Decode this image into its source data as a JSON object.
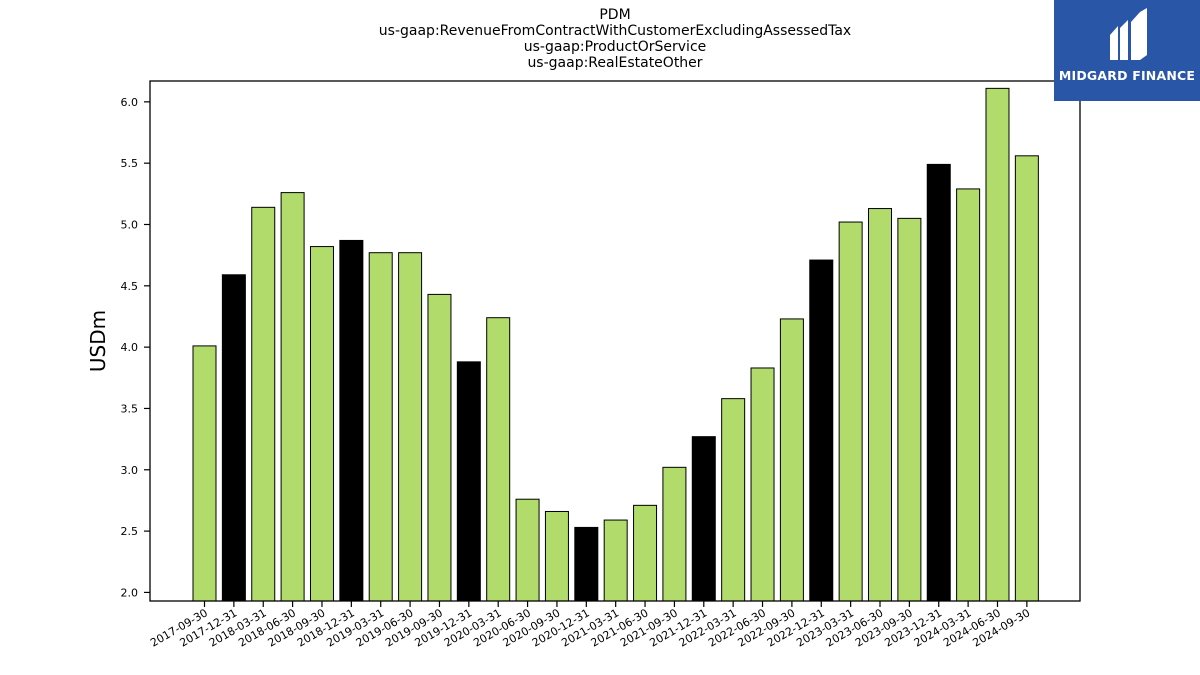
{
  "title_lines": [
    "PDM",
    "us-gaap:RevenueFromContractWithCustomerExcludingAssessedTax",
    "us-gaap:ProductOrService",
    "us-gaap:RealEstateOther"
  ],
  "logo": {
    "text": "MIDGARD FINANCE",
    "bg": "#2a56a8"
  },
  "chart_data": {
    "type": "bar",
    "ylabel": "USDm",
    "ylim": [
      1.93,
      6.17
    ],
    "yticks": [
      2.0,
      2.5,
      3.0,
      3.5,
      4.0,
      4.5,
      5.0,
      5.5,
      6.0
    ],
    "categories": [
      "2017-09-30",
      "2017-12-31",
      "2018-03-31",
      "2018-06-30",
      "2018-09-30",
      "2018-12-31",
      "2019-03-31",
      "2019-06-30",
      "2019-09-30",
      "2019-12-31",
      "2020-03-31",
      "2020-06-30",
      "2020-09-30",
      "2020-12-31",
      "2021-03-31",
      "2021-06-30",
      "2021-09-30",
      "2021-12-31",
      "2022-03-31",
      "2022-06-30",
      "2022-09-30",
      "2022-12-31",
      "2023-03-31",
      "2023-06-30",
      "2023-09-30",
      "2023-12-31",
      "2024-03-31",
      "2024-06-30",
      "2024-09-30"
    ],
    "values": [
      4.01,
      4.59,
      5.14,
      5.26,
      4.82,
      4.87,
      4.77,
      4.77,
      4.43,
      3.88,
      4.24,
      2.76,
      2.66,
      2.53,
      2.59,
      2.71,
      3.02,
      3.27,
      3.58,
      3.83,
      4.23,
      4.71,
      5.02,
      5.13,
      5.05,
      5.49,
      5.29,
      6.11,
      5.56
    ],
    "colors": {
      "quarter": "#b1dc6b",
      "year_end": "#000000"
    },
    "bar_colors": [
      "quarter",
      "year_end",
      "quarter",
      "quarter",
      "quarter",
      "year_end",
      "quarter",
      "quarter",
      "quarter",
      "year_end",
      "quarter",
      "quarter",
      "quarter",
      "year_end",
      "quarter",
      "quarter",
      "quarter",
      "year_end",
      "quarter",
      "quarter",
      "quarter",
      "year_end",
      "quarter",
      "quarter",
      "quarter",
      "year_end",
      "quarter",
      "quarter",
      "quarter"
    ],
    "grid": false,
    "legend": "none"
  }
}
